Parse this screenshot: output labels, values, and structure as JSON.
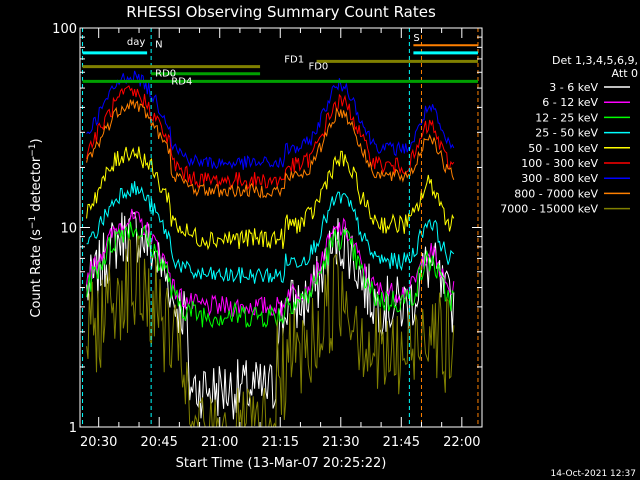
{
  "chart_data": {
    "type": "line",
    "title": "RHESSI Observing Summary Count Rates",
    "xlabel": "Start Time (13-Mar-07 20:25:22)",
    "ylabel": "Count Rate (s⁻¹ detector⁻¹)",
    "ylabel_main": "Count Rate (s",
    "ylabel_sup1": "−1",
    "ylabel_mid": " detector",
    "ylabel_sup2": "−1",
    "ylabel_end": ")",
    "yscale": "log",
    "ylim": [
      1,
      100
    ],
    "xlim": [
      "20:25:22",
      "22:05:00"
    ],
    "x_minutes_range": [
      25.37,
      125
    ],
    "y_ticks": [
      {
        "value": 1,
        "label": "1"
      },
      {
        "value": 10,
        "label": "10"
      },
      {
        "value": 100,
        "label": "100"
      }
    ],
    "x_ticks": [
      {
        "minute": 30,
        "label": "20:30"
      },
      {
        "minute": 45,
        "label": "20:45"
      },
      {
        "minute": 60,
        "label": "21:00"
      },
      {
        "minute": 75,
        "label": "21:15"
      },
      {
        "minute": 90,
        "label": "21:30"
      },
      {
        "minute": 105,
        "label": "21:45"
      },
      {
        "minute": 120,
        "label": "22:00"
      }
    ],
    "legend_header": [
      "Det 1,3,4,5,6,9,",
      "Att 0"
    ],
    "legend_position": "right",
    "series": [
      {
        "name": "3 - 6 keV",
        "color": "#ffffff"
      },
      {
        "name": "6 - 12 keV",
        "color": "#ff00ff"
      },
      {
        "name": "12 - 25 keV",
        "color": "#00ff00"
      },
      {
        "name": "25 - 50 keV",
        "color": "#00ffff"
      },
      {
        "name": "50 - 100 keV",
        "color": "#ffff00"
      },
      {
        "name": "100 - 300 keV",
        "color": "#ff0000"
      },
      {
        "name": "300 - 800 keV",
        "color": "#0000ff"
      },
      {
        "name": "800 - 7000 keV",
        "color": "#ff8000"
      },
      {
        "name": "7000 - 15000 keV",
        "color": "#808000"
      }
    ],
    "annotations": [
      {
        "text": "day",
        "color": "#ff8000"
      },
      {
        "text": "N",
        "color": "#00ffff"
      },
      {
        "text": "RD0",
        "color": "#00a000"
      },
      {
        "text": "RD4",
        "color": "#00a000"
      },
      {
        "text": "FD1",
        "color": "#808000"
      },
      {
        "text": "FD0",
        "color": "#808000"
      },
      {
        "text": "S",
        "color": "#ff8000"
      }
    ],
    "timestamp": "14-Oct-2021 12:37"
  }
}
